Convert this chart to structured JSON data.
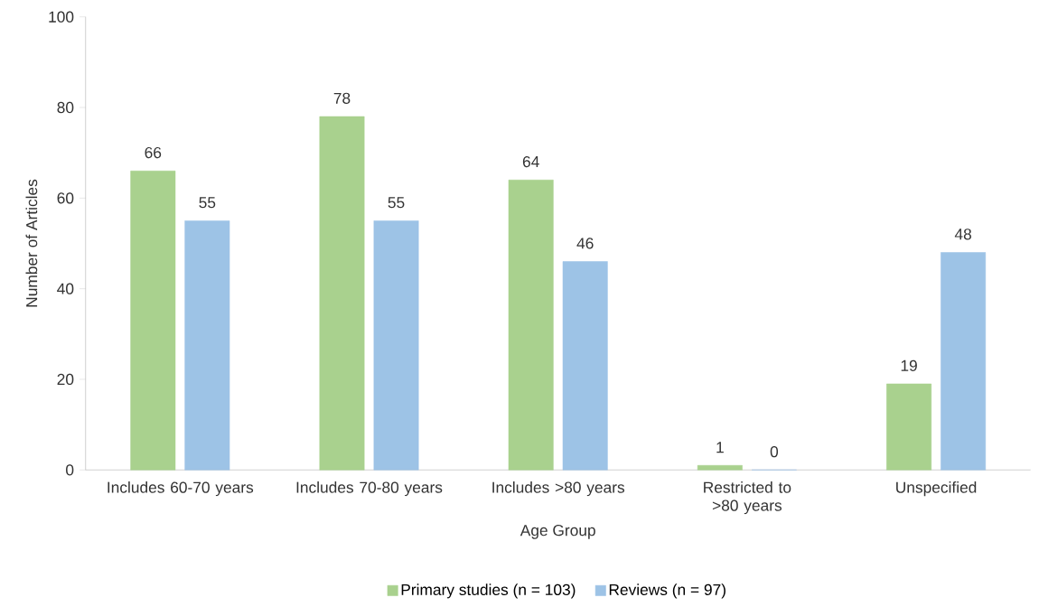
{
  "chart_data": {
    "type": "bar",
    "xlabel": "Age Group",
    "ylabel": "Number of Articles",
    "categories": [
      "Includes 60-70 years",
      "Includes 70-80 years",
      "Includes >80 years",
      "Restricted to >80 years",
      "Unspecified"
    ],
    "series": [
      {
        "name": "Primary studies (n = 103)",
        "color": "#a9d18e",
        "values": [
          66,
          78,
          64,
          1,
          19
        ]
      },
      {
        "name": "Reviews (n = 97)",
        "color": "#9dc3e6",
        "values": [
          55,
          55,
          46,
          0,
          48
        ]
      }
    ],
    "ylim": [
      0,
      100
    ],
    "yticks": [
      0,
      20,
      40,
      60,
      80,
      100
    ],
    "data_labels": true,
    "legend": "bottom",
    "grid": false
  }
}
